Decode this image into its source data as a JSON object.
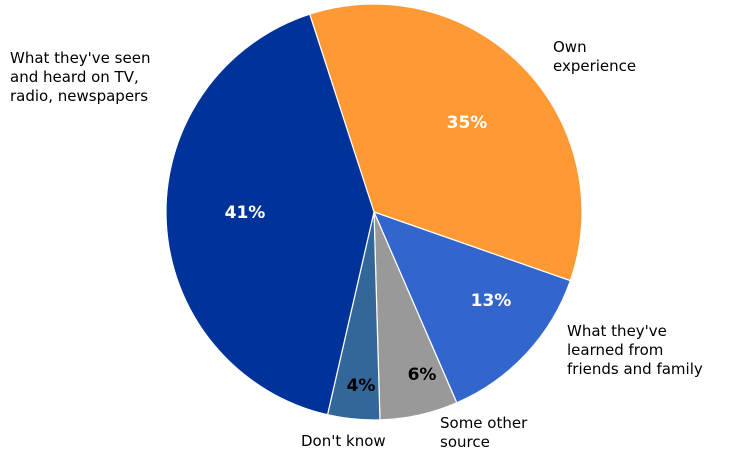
{
  "chart_data": {
    "type": "pie",
    "title": "",
    "slices": [
      {
        "label_lines": [
          "Own",
          "experience"
        ],
        "value": 35,
        "value_label": "35%",
        "color": "#FF9933",
        "label_color": "#ffffff"
      },
      {
        "label_lines": [
          "What they've",
          "learned from",
          "friends and family"
        ],
        "value": 13,
        "value_label": "13%",
        "color": "#3366CC",
        "label_color": "#ffffff"
      },
      {
        "label_lines": [
          "Some other",
          "source"
        ],
        "value": 6,
        "value_label": "6%",
        "color": "#999999",
        "label_color": "#000000"
      },
      {
        "label_lines": [
          "Don't know"
        ],
        "value": 4,
        "value_label": "4%",
        "color": "#336699",
        "label_color": "#000000"
      },
      {
        "label_lines": [
          "What they've seen",
          "and heard on TV,",
          "radio, newspapers"
        ],
        "value": 41,
        "value_label": "41%",
        "color": "#003399",
        "label_color": "#ffffff"
      }
    ],
    "legend": "none",
    "start_angle_deg": -18,
    "direction": "clockwise"
  }
}
